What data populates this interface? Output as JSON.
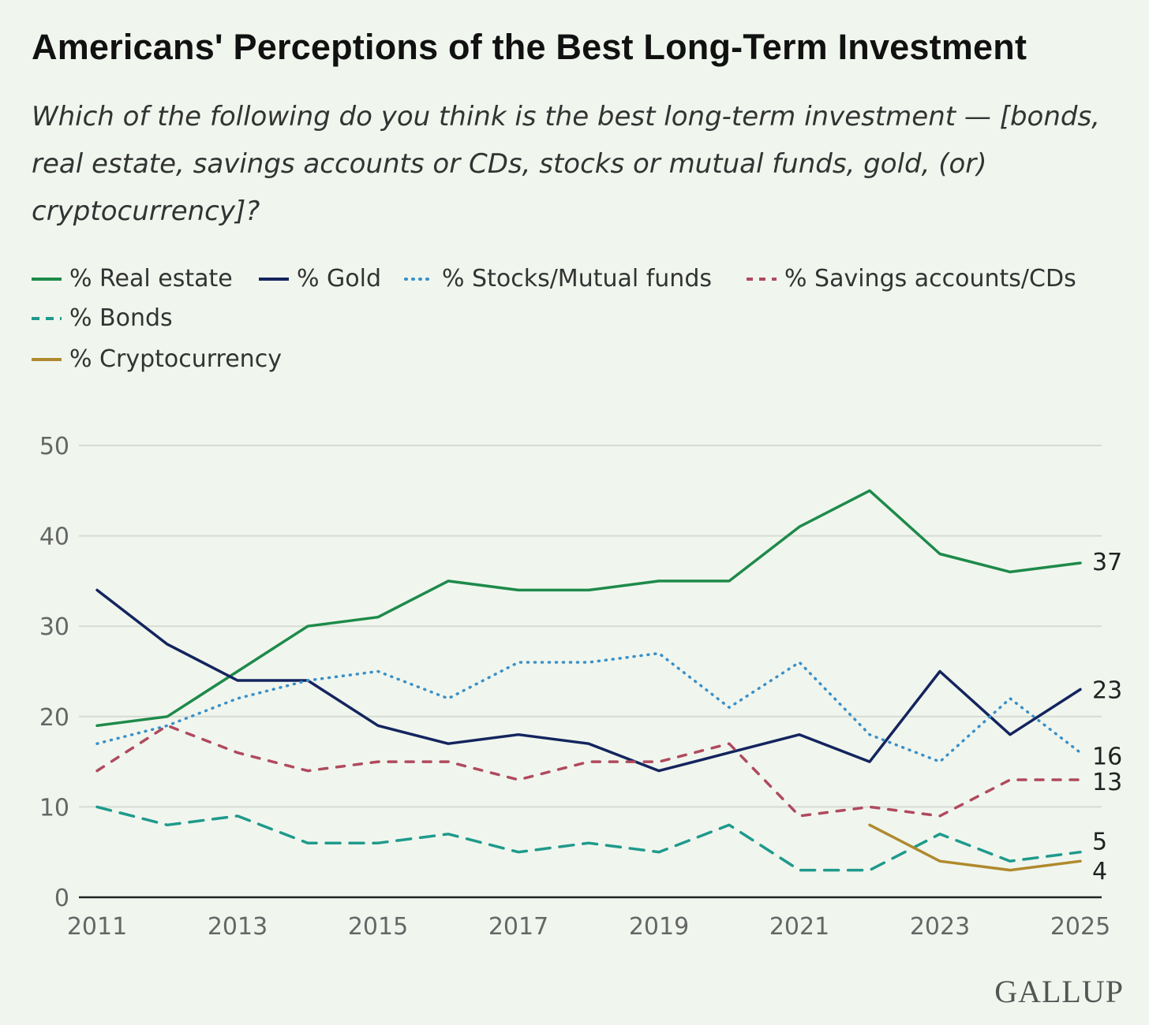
{
  "title": "Americans' Perceptions of the Best Long-Term Investment",
  "subtitle": "Which of the following do you think is the best long-term investment — [bonds, real estate, savings accounts or CDs, stocks or mutual funds, gold, (or) cryptocurrency]?",
  "logo": "GALLUP",
  "chart_data": {
    "type": "line",
    "x": [
      2011,
      2012,
      2013,
      2014,
      2015,
      2016,
      2017,
      2018,
      2019,
      2020,
      2021,
      2022,
      2023,
      2024,
      2025
    ],
    "xticks": [
      2011,
      2013,
      2015,
      2017,
      2019,
      2021,
      2023,
      2025
    ],
    "yticks": [
      0,
      10,
      20,
      30,
      40,
      50
    ],
    "ylim": [
      0,
      50
    ],
    "xlabel": "",
    "ylabel": "",
    "grid": true,
    "legend_position": "top-left",
    "series": [
      {
        "name": "% Real estate",
        "color": "#1e8a4a",
        "dash": "solid",
        "values": [
          19,
          20,
          25,
          30,
          31,
          35,
          34,
          34,
          35,
          35,
          41,
          45,
          38,
          36,
          37
        ],
        "end_label": "37"
      },
      {
        "name": "% Gold",
        "color": "#14245e",
        "dash": "solid",
        "values": [
          34,
          28,
          24,
          24,
          19,
          17,
          18,
          17,
          14,
          16,
          18,
          15,
          25,
          18,
          23
        ],
        "end_label": "23"
      },
      {
        "name": "% Stocks/Mutual funds",
        "color": "#3a90c8",
        "dash": "dotted",
        "values": [
          17,
          19,
          22,
          24,
          25,
          22,
          26,
          26,
          27,
          21,
          26,
          18,
          15,
          22,
          16
        ],
        "end_label": "16"
      },
      {
        "name": "% Savings accounts/CDs",
        "color": "#b04a5e",
        "dash": "dashed",
        "values": [
          14,
          19,
          16,
          14,
          15,
          15,
          13,
          15,
          15,
          17,
          9,
          10,
          9,
          13,
          13
        ],
        "end_label": "13"
      },
      {
        "name": "% Bonds",
        "color": "#1f9a8c",
        "dash": "longdash",
        "values": [
          10,
          8,
          9,
          6,
          6,
          7,
          5,
          6,
          5,
          8,
          3,
          3,
          7,
          4,
          5
        ],
        "end_label": "5"
      },
      {
        "name": "% Cryptocurrency",
        "color": "#b08a2e",
        "dash": "solid",
        "values": [
          null,
          null,
          null,
          null,
          null,
          null,
          null,
          null,
          null,
          null,
          null,
          8,
          4,
          3,
          4
        ],
        "end_label": "4"
      }
    ]
  }
}
